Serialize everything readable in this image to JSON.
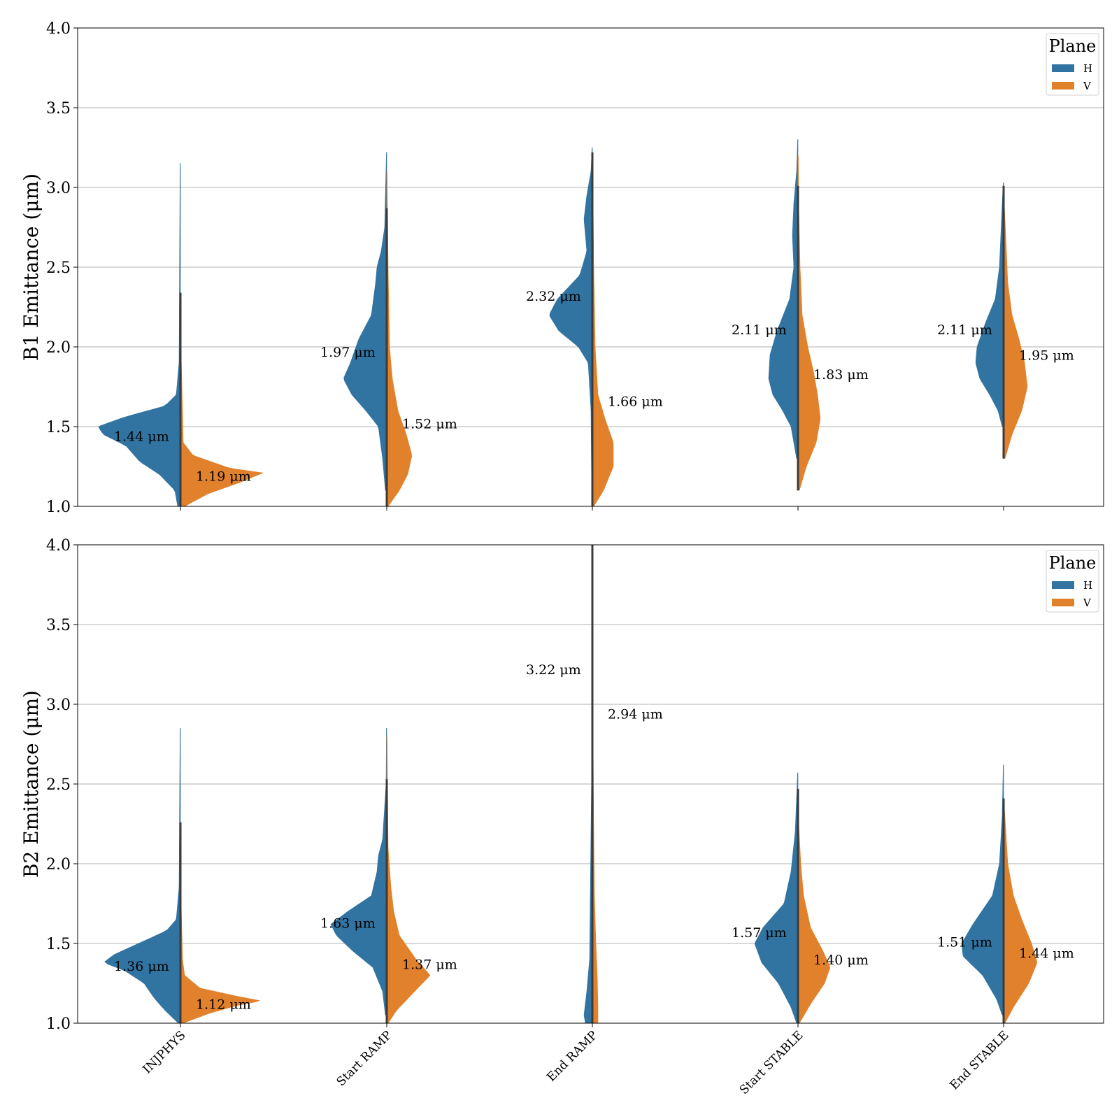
{
  "colors": {
    "H": "#3274a1",
    "V": "#e1812c",
    "median_line": "#3b3b3b",
    "grid": "#b0b0b0"
  },
  "chart_data": [
    {
      "type": "violin",
      "ylabel": "B1 Emittance (μm)",
      "ylim": [
        1.0,
        4.0
      ],
      "yticks": [
        "1.0",
        "1.5",
        "2.0",
        "2.5",
        "3.0",
        "3.5",
        "4.0"
      ],
      "categories": [
        "INJPHYS",
        "Start RAMP",
        "End RAMP",
        "Start STABLE",
        "End STABLE"
      ],
      "grid": true,
      "legend": {
        "title": "Plane",
        "position": "top-right",
        "entries": [
          "H",
          "V"
        ]
      },
      "series": [
        {
          "name": "H",
          "annotations": [
            "1.44 μm",
            "1.97 μm",
            "2.32 μm",
            "2.11 μm",
            "2.11 μm"
          ],
          "median": [
            1.44,
            1.97,
            2.32,
            2.11,
            2.11
          ],
          "range": [
            [
              1.0,
              3.15
            ],
            [
              1.1,
              3.22
            ],
            [
              1.1,
              3.25
            ],
            [
              1.3,
              3.3
            ],
            [
              1.5,
              3.03
            ]
          ]
        },
        {
          "name": "V",
          "annotations": [
            "1.19 μm",
            "1.52 μm",
            "1.66 μm",
            "1.83 μm",
            "1.95 μm"
          ],
          "median": [
            1.19,
            1.52,
            1.66,
            1.83,
            1.95
          ],
          "range": [
            [
              1.0,
              2.05
            ],
            [
              1.0,
              3.1
            ],
            [
              1.0,
              3.15
            ],
            [
              1.1,
              3.2
            ],
            [
              1.3,
              2.9
            ]
          ]
        }
      ]
    },
    {
      "type": "violin",
      "ylabel": "B2 Emittance (μm)",
      "ylim": [
        1.0,
        4.0
      ],
      "yticks": [
        "1.0",
        "1.5",
        "2.0",
        "2.5",
        "3.0",
        "3.5",
        "4.0"
      ],
      "categories": [
        "INJPHYS",
        "Start RAMP",
        "End RAMP",
        "Start STABLE",
        "End STABLE"
      ],
      "grid": true,
      "legend": {
        "title": "Plane",
        "position": "top-right",
        "entries": [
          "H",
          "V"
        ]
      },
      "series": [
        {
          "name": "H",
          "annotations": [
            "1.36 μm",
            "1.63 μm",
            "3.22 μm",
            "1.57 μm",
            "1.51 μm"
          ],
          "median": [
            1.36,
            1.63,
            3.22,
            1.57,
            1.51
          ],
          "range": [
            [
              1.0,
              2.85
            ],
            [
              1.05,
              2.85
            ],
            [
              1.0,
              4.0
            ],
            [
              1.0,
              2.57
            ],
            [
              1.05,
              2.62
            ]
          ]
        },
        {
          "name": "V",
          "annotations": [
            "1.12 μm",
            "1.37 μm",
            "2.94 μm",
            "1.40 μm",
            "1.44 μm"
          ],
          "median": [
            1.12,
            1.37,
            2.94,
            1.4,
            1.44
          ],
          "range": [
            [
              1.0,
              1.85
            ],
            [
              1.0,
              2.8
            ],
            [
              1.0,
              4.0
            ],
            [
              1.0,
              2.3
            ],
            [
              1.0,
              2.4
            ]
          ]
        }
      ]
    }
  ]
}
